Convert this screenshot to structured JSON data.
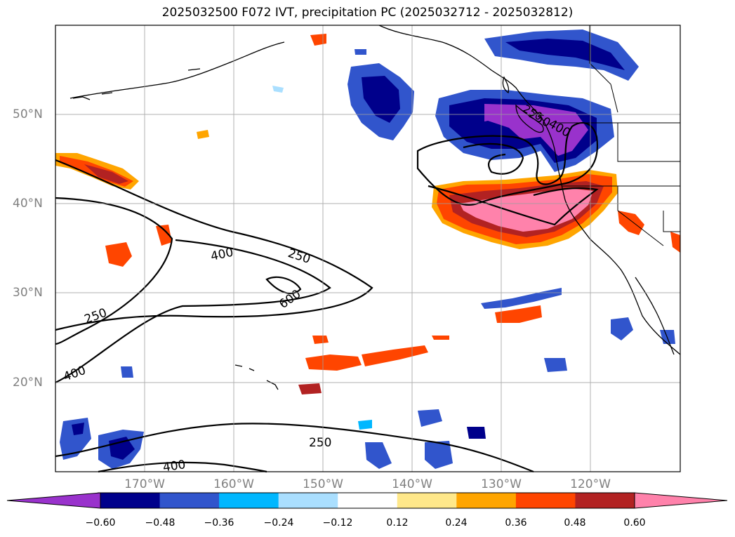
{
  "title": "2025032500 F072 IVT, precipitation PC (2025032712 - 2025032812)",
  "lat_labels": [
    "50°N",
    "40°N",
    "30°N",
    "20°N"
  ],
  "lon_labels": [
    "170°W",
    "160°W",
    "150°W",
    "140°W",
    "130°W",
    "120°W"
  ],
  "contour_labels": [
    "250",
    "400",
    "600",
    "250",
    "400",
    "250",
    "400",
    "250",
    "400",
    "250"
  ],
  "colorbar": {
    "ticks": [
      "−0.60",
      "−0.48",
      "−0.36",
      "−0.24",
      "−0.12",
      "0.12",
      "0.24",
      "0.36",
      "0.48",
      "0.60"
    ],
    "colors": [
      "#9932cc",
      "#00008b",
      "#3155cc",
      "#00b7ff",
      "#aadfff",
      "#ffffff",
      "#ffe88a",
      "#ffa500",
      "#ff4500",
      "#b22222",
      "#ff82ab"
    ]
  },
  "map": {
    "extent_lon": [
      -180,
      -110
    ],
    "extent_lat": [
      10,
      60
    ],
    "projection": "PlateCarree",
    "gridlines": true
  }
}
